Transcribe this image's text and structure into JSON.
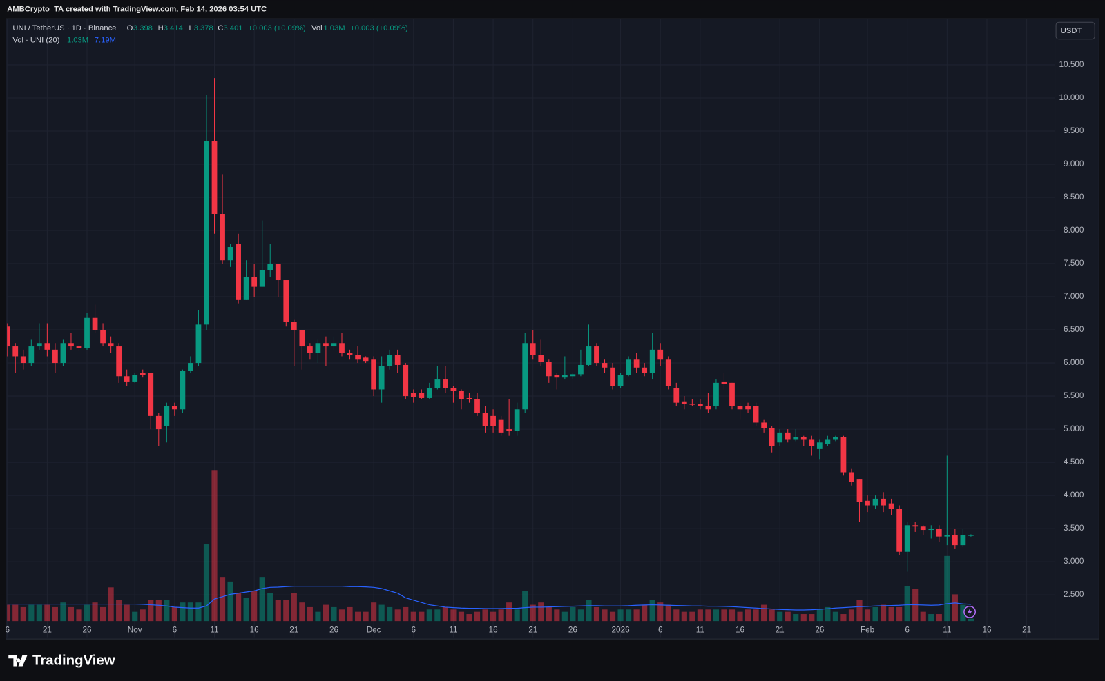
{
  "header": {
    "credit": "AMBCrypto_TA created with TradingView.com, Feb 14, 2026 03:54 UTC"
  },
  "footer": {
    "logo": "TradingView"
  },
  "chart_data": {
    "type": "candlestick",
    "currency": "USDT",
    "legend": {
      "symbol": "UNI / TetherUS · 1D · Binance",
      "open_label": "O",
      "high_label": "H",
      "low_label": "L",
      "close_label": "C",
      "change": "+0.003 (+0.09%)",
      "volume_label": "Vol",
      "volume": "1.03M",
      "volume_change": "+0.003 (+0.09%)",
      "indicator": "Vol · UNI (20)",
      "indicator_volume": "1.03M",
      "indicator_ma": "7.19M"
    },
    "colors": {
      "up": "#089981",
      "down": "#f23645",
      "ma": "#2962ff"
    },
    "grid": true,
    "categories": [
      "Oct 16",
      "Oct 17",
      "Oct 18",
      "Oct 19",
      "Oct 20",
      "Oct 21",
      "Oct 22",
      "Oct 23",
      "Oct 24",
      "Oct 25",
      "Oct 26",
      "Oct 27",
      "Oct 28",
      "Oct 29",
      "Oct 30",
      "Oct 31",
      "Nov 1",
      "Nov 2",
      "Nov 3",
      "Nov 4",
      "Nov 5",
      "Nov 6",
      "Nov 7",
      "Nov 8",
      "Nov 9",
      "Nov 10",
      "Nov 11",
      "Nov 12",
      "Nov 13",
      "Nov 14",
      "Nov 15",
      "Nov 16",
      "Nov 17",
      "Nov 18",
      "Nov 19",
      "Nov 20",
      "Nov 21",
      "Nov 22",
      "Nov 23",
      "Nov 24",
      "Nov 25",
      "Nov 26",
      "Nov 27",
      "Nov 28",
      "Nov 29",
      "Nov 30",
      "Dec 1",
      "Dec 2",
      "Dec 3",
      "Dec 4",
      "Dec 5",
      "Dec 6",
      "Dec 7",
      "Dec 8",
      "Dec 9",
      "Dec 10",
      "Dec 11",
      "Dec 12",
      "Dec 13",
      "Dec 14",
      "Dec 15",
      "Dec 16",
      "Dec 17",
      "Dec 18",
      "Dec 19",
      "Dec 20",
      "Dec 21",
      "Dec 22",
      "Dec 23",
      "Dec 24",
      "Dec 25",
      "Dec 26",
      "Dec 27",
      "Dec 28",
      "Dec 29",
      "Dec 30",
      "Dec 31",
      "Jan 1",
      "Jan 2",
      "Jan 3",
      "Jan 4",
      "Jan 5",
      "Jan 6",
      "Jan 7",
      "Jan 8",
      "Jan 9",
      "Jan 10",
      "Jan 11",
      "Jan 12",
      "Jan 13",
      "Jan 14",
      "Jan 15",
      "Jan 16",
      "Jan 17",
      "Jan 18",
      "Jan 19",
      "Jan 20",
      "Jan 21",
      "Jan 22",
      "Jan 23",
      "Jan 24",
      "Jan 25",
      "Jan 26",
      "Jan 27",
      "Jan 28",
      "Jan 29",
      "Jan 30",
      "Jan 31",
      "Feb 1",
      "Feb 2",
      "Feb 3",
      "Feb 4",
      "Feb 5",
      "Feb 6",
      "Feb 7",
      "Feb 8",
      "Feb 9",
      "Feb 10",
      "Feb 11",
      "Feb 12",
      "Feb 13",
      "Feb 14",
      "Feb 15",
      "Feb 16",
      "Feb 17",
      "Feb 18",
      "Feb 19",
      "Feb 20",
      "Feb 21",
      "Feb 22",
      "Feb 23",
      "Feb 24"
    ],
    "open": [
      6.55,
      6.25,
      6.1,
      6.0,
      6.25,
      6.3,
      6.2,
      6.0,
      6.3,
      6.25,
      6.22,
      6.68,
      6.5,
      6.3,
      6.25,
      5.8,
      5.72,
      5.85,
      5.85,
      5.2,
      5.05,
      5.35,
      5.3,
      5.88,
      6.0,
      6.58,
      9.35,
      8.25,
      7.55,
      7.8,
      6.95,
      7.3,
      7.15,
      7.4,
      7.5,
      7.25,
      6.62,
      6.5,
      6.25,
      6.15,
      6.3,
      6.25,
      6.3,
      6.15,
      6.12,
      6.08,
      6.05,
      5.6,
      5.95,
      6.12,
      5.97,
      5.55,
      5.55,
      5.47,
      5.62,
      5.75,
      5.62,
      5.58,
      5.47,
      5.45,
      5.25,
      5.2,
      5.15,
      5.0,
      4.98,
      5.3,
      6.3,
      6.12,
      6.02,
      5.82,
      5.78,
      5.8,
      5.83,
      5.97,
      6.25,
      6.0,
      5.93,
      5.65,
      5.82,
      6.05,
      5.93,
      5.85,
      6.2,
      6.05,
      5.62,
      5.42,
      5.38,
      5.38,
      5.35,
      5.35,
      5.72,
      5.7,
      5.35,
      5.35,
      5.35,
      5.1,
      5.02,
      4.8,
      4.95,
      4.85,
      4.88,
      4.85,
      4.7,
      4.78,
      4.85,
      4.88,
      4.35,
      4.25,
      3.92,
      3.85,
      3.95,
      3.88,
      3.8,
      3.15,
      3.55,
      3.53,
      3.48,
      3.5,
      3.38,
      3.4,
      3.25,
      3.398,
      null,
      null,
      null,
      null,
      null,
      null,
      null,
      null,
      null,
      null
    ],
    "high": [
      6.6,
      6.3,
      6.2,
      6.35,
      6.6,
      6.6,
      6.3,
      6.35,
      6.45,
      6.3,
      6.75,
      6.88,
      6.6,
      6.4,
      6.3,
      5.9,
      5.85,
      5.9,
      5.85,
      5.25,
      5.4,
      5.4,
      5.9,
      6.1,
      6.8,
      10.05,
      10.3,
      8.85,
      7.8,
      7.95,
      7.55,
      7.5,
      8.15,
      7.8,
      7.5,
      7.25,
      6.65,
      6.5,
      6.3,
      6.35,
      6.4,
      6.4,
      6.45,
      6.2,
      6.25,
      6.1,
      6.1,
      6.1,
      6.2,
      6.2,
      6.0,
      5.6,
      5.6,
      5.7,
      5.95,
      5.95,
      5.65,
      5.6,
      5.55,
      5.55,
      5.35,
      5.3,
      5.2,
      5.45,
      5.4,
      6.45,
      6.5,
      6.35,
      6.05,
      5.85,
      6.1,
      5.85,
      6.2,
      6.58,
      6.3,
      6.05,
      6.0,
      5.85,
      6.1,
      6.15,
      6.0,
      6.45,
      6.3,
      6.1,
      5.7,
      5.5,
      5.45,
      5.45,
      5.55,
      5.75,
      5.85,
      5.7,
      5.4,
      5.4,
      5.4,
      5.15,
      5.05,
      5.0,
      5.0,
      5.0,
      4.9,
      4.9,
      4.85,
      4.9,
      4.9,
      4.9,
      4.4,
      4.25,
      4.0,
      4.0,
      4.05,
      3.95,
      3.85,
      3.6,
      3.6,
      3.55,
      3.55,
      3.55,
      4.6,
      3.5,
      3.5,
      3.414,
      null,
      null,
      null,
      null,
      null,
      null,
      null,
      null,
      null,
      null
    ],
    "low": [
      6.1,
      5.85,
      5.9,
      5.95,
      6.2,
      6.1,
      5.85,
      5.95,
      6.2,
      6.18,
      6.2,
      6.45,
      6.25,
      6.15,
      5.7,
      5.65,
      5.7,
      5.78,
      5.0,
      4.75,
      4.8,
      5.2,
      5.25,
      5.85,
      5.95,
      6.5,
      7.95,
      7.5,
      7.45,
      6.9,
      6.95,
      7.0,
      7.15,
      7.3,
      7.0,
      6.55,
      5.95,
      5.9,
      6.05,
      6.0,
      5.95,
      6.2,
      6.1,
      6.05,
      6.0,
      6.0,
      5.5,
      5.4,
      5.9,
      5.85,
      5.45,
      5.4,
      5.45,
      5.45,
      5.6,
      5.55,
      5.4,
      5.3,
      5.4,
      5.2,
      4.95,
      4.95,
      4.9,
      4.9,
      4.9,
      5.25,
      6.05,
      5.95,
      5.7,
      5.6,
      5.75,
      5.75,
      5.8,
      5.95,
      5.95,
      5.85,
      5.6,
      5.62,
      5.8,
      5.85,
      5.8,
      5.75,
      5.95,
      5.6,
      5.35,
      5.3,
      5.35,
      5.3,
      5.25,
      5.3,
      5.6,
      5.3,
      5.15,
      5.25,
      5.05,
      4.95,
      4.65,
      4.75,
      4.8,
      4.82,
      4.75,
      4.6,
      4.55,
      4.75,
      4.82,
      4.3,
      4.15,
      3.6,
      3.75,
      3.8,
      3.75,
      3.7,
      3.1,
      2.85,
      3.45,
      3.4,
      3.35,
      3.3,
      3.25,
      3.2,
      3.22,
      3.378,
      null,
      null,
      null,
      null,
      null,
      null,
      null,
      null,
      null,
      null
    ],
    "close": [
      6.25,
      6.1,
      6.0,
      6.25,
      6.3,
      6.2,
      6.0,
      6.3,
      6.25,
      6.22,
      6.68,
      6.5,
      6.3,
      6.25,
      5.8,
      5.72,
      5.82,
      5.82,
      5.2,
      5.0,
      5.35,
      5.3,
      5.88,
      6.0,
      6.58,
      9.35,
      8.25,
      7.55,
      7.75,
      6.95,
      7.3,
      7.15,
      7.4,
      7.5,
      7.25,
      6.62,
      6.5,
      6.25,
      6.15,
      6.3,
      6.25,
      6.3,
      6.15,
      6.12,
      6.05,
      6.03,
      5.6,
      5.95,
      6.12,
      5.97,
      5.5,
      5.48,
      5.47,
      5.62,
      5.75,
      5.62,
      5.58,
      5.45,
      5.45,
      5.25,
      5.05,
      5.05,
      4.95,
      4.98,
      5.3,
      6.3,
      6.12,
      6.02,
      5.8,
      5.78,
      5.82,
      5.83,
      5.97,
      6.25,
      6.0,
      5.93,
      5.65,
      5.82,
      6.05,
      5.93,
      5.85,
      6.2,
      6.05,
      5.65,
      5.4,
      5.38,
      5.37,
      5.35,
      5.3,
      5.7,
      5.68,
      5.35,
      5.3,
      5.3,
      5.1,
      5.02,
      4.75,
      4.95,
      4.85,
      4.88,
      4.85,
      4.75,
      4.8,
      4.85,
      4.88,
      4.35,
      4.2,
      3.9,
      3.85,
      3.95,
      3.85,
      3.8,
      3.15,
      3.55,
      3.53,
      3.48,
      3.5,
      3.38,
      3.4,
      3.25,
      3.4,
      3.401,
      null,
      null,
      null,
      null,
      null,
      null,
      null,
      null,
      null,
      null
    ],
    "volume": [
      7,
      7,
      6,
      7,
      7,
      7,
      6,
      8,
      6,
      5,
      7,
      8,
      6,
      14.5,
      9,
      7,
      4,
      5,
      9,
      9,
      9,
      6,
      8,
      8,
      8,
      33,
      65,
      19,
      17,
      12,
      10,
      13,
      19,
      12,
      9,
      9,
      12,
      8,
      6,
      4,
      7,
      6,
      5,
      6,
      4,
      4,
      8,
      7,
      6,
      5,
      6,
      4,
      4,
      5,
      5,
      6,
      5,
      4,
      3,
      4,
      5,
      4,
      5,
      8,
      5,
      13,
      7,
      8,
      6,
      5,
      4,
      6,
      5,
      9,
      6,
      5,
      4,
      5,
      5,
      5,
      7,
      9,
      8,
      7,
      5,
      4,
      4,
      5,
      5,
      5,
      5,
      5,
      4,
      5,
      5,
      7,
      5,
      4,
      4,
      3,
      3,
      3,
      5,
      6,
      4,
      3,
      5,
      9,
      5,
      6,
      7,
      6,
      6,
      15,
      14,
      4,
      3,
      3,
      28,
      11.5,
      7,
      1.03,
      null,
      null,
      null,
      null,
      null,
      null,
      null,
      null,
      null,
      null
    ],
    "volume_ma": [
      7.3,
      7.3,
      7.3,
      7.3,
      7.3,
      7.3,
      7.3,
      7.3,
      7.3,
      7.3,
      7.3,
      7.3,
      7.3,
      7.3,
      7.3,
      7.3,
      7.3,
      7.2,
      7.0,
      6.8,
      6.5,
      6.0,
      5.8,
      5.6,
      5.6,
      6.5,
      9.5,
      10.5,
      11.5,
      12,
      12.5,
      13,
      14,
      14.5,
      14.6,
      14.8,
      15,
      15,
      15,
      15,
      15,
      15,
      15,
      14.8,
      14.8,
      14.7,
      14.5,
      14,
      13,
      12,
      10,
      9,
      8,
      7,
      6.5,
      6,
      5.8,
      5.6,
      5.5,
      5.5,
      5.4,
      5.4,
      5.4,
      5.5,
      5.5,
      5.8,
      6,
      6,
      6.1,
      6.2,
      6.3,
      6.4,
      6.5,
      6.6,
      6.6,
      6.5,
      6.5,
      6.5,
      6.6,
      6.8,
      6.9,
      7,
      6.9,
      6.8,
      6.7,
      6.6,
      6.5,
      6.5,
      6.4,
      6.4,
      6.3,
      6.2,
      6.0,
      5.8,
      5.6,
      5.4,
      5.2,
      5.0,
      4.9,
      4.8,
      4.8,
      4.9,
      5.1,
      5.3,
      5.6,
      5.8,
      6.0,
      6.2,
      6.3,
      6.5,
      6.6,
      6.7,
      6.8,
      7.0,
      7.0,
      6.9,
      6.8,
      6.9,
      7.5,
      7.8,
      7.4,
      7.19,
      null,
      null,
      null,
      null,
      null,
      null,
      null,
      null,
      null,
      null
    ],
    "ylim": [
      1.86,
      11.19
    ],
    "yticks": [
      {
        "value": 2.5,
        "label": "2.500"
      },
      {
        "value": 3,
        "label": "3.000"
      },
      {
        "value": 3.5,
        "label": "3.500"
      },
      {
        "value": 4,
        "label": "4.000"
      },
      {
        "value": 4.5,
        "label": "4.500"
      },
      {
        "value": 5,
        "label": "5.000"
      },
      {
        "value": 5.5,
        "label": "5.500"
      },
      {
        "value": 6,
        "label": "6.000"
      },
      {
        "value": 6.5,
        "label": "6.500"
      },
      {
        "value": 7,
        "label": "7.000"
      },
      {
        "value": 7.5,
        "label": "7.500"
      },
      {
        "value": 8,
        "label": "8.000"
      },
      {
        "value": 8.5,
        "label": "8.500"
      },
      {
        "value": 9,
        "label": "9.000"
      },
      {
        "value": 9.5,
        "label": "9.500"
      },
      {
        "value": 10,
        "label": "10.000"
      },
      {
        "value": 10.5,
        "label": "10.500"
      }
    ],
    "xticks": [
      {
        "value": "Oct 16",
        "label": "6"
      },
      {
        "value": "Oct 21",
        "label": "21"
      },
      {
        "value": "Oct 26",
        "label": "26"
      },
      {
        "value": "Nov 1",
        "label": "Nov"
      },
      {
        "value": "Nov 6",
        "label": "6"
      },
      {
        "value": "Nov 11",
        "label": "11"
      },
      {
        "value": "Nov 16",
        "label": "16"
      },
      {
        "value": "Nov 21",
        "label": "21"
      },
      {
        "value": "Nov 26",
        "label": "26"
      },
      {
        "value": "Dec 1",
        "label": "Dec"
      },
      {
        "value": "Dec 6",
        "label": "6"
      },
      {
        "value": "Dec 11",
        "label": "11"
      },
      {
        "value": "Dec 16",
        "label": "16"
      },
      {
        "value": "Dec 21",
        "label": "21"
      },
      {
        "value": "Dec 26",
        "label": "26"
      },
      {
        "value": "Jan 1",
        "label": "2026"
      },
      {
        "value": "Jan 6",
        "label": "6"
      },
      {
        "value": "Jan 11",
        "label": "11"
      },
      {
        "value": "Jan 16",
        "label": "16"
      },
      {
        "value": "Jan 21",
        "label": "21"
      },
      {
        "value": "Jan 26",
        "label": "26"
      },
      {
        "value": "Feb 1",
        "label": "Feb"
      },
      {
        "value": "Feb 6",
        "label": "6"
      },
      {
        "value": "Feb 11",
        "label": "11"
      },
      {
        "value": "Feb 16",
        "label": "16"
      },
      {
        "value": "Feb 21",
        "label": "21"
      }
    ]
  }
}
